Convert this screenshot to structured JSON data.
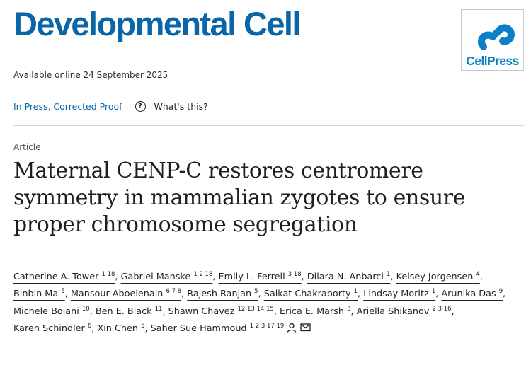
{
  "journal": {
    "title": "Developmental Cell",
    "logo_text": "CellPress",
    "brand_color": "#0b66a8",
    "logo_color": "#0b80c8"
  },
  "availability": "Available online 24 September 2025",
  "status": {
    "label": "In Press, Corrected Proof",
    "help_icon": "?",
    "help_link": "What's this?"
  },
  "article": {
    "type": "Article",
    "title": "Maternal CENP-C restores centromere symmetry in mammalian zygotes to ensure proper chromosome segregation"
  },
  "authors": [
    {
      "name": "Catherine A. Tower",
      "sup": "1 18"
    },
    {
      "name": "Gabriel Manske",
      "sup": "1 2 18"
    },
    {
      "name": "Emily L. Ferrell",
      "sup": "3 18"
    },
    {
      "name": "Dilara N. Anbarci",
      "sup": "1"
    },
    {
      "name": "Kelsey Jorgensen",
      "sup": "4"
    },
    {
      "name": "Binbin Ma",
      "sup": "5"
    },
    {
      "name": "Mansour Aboelenain",
      "sup": "6 7 8"
    },
    {
      "name": "Rajesh Ranjan",
      "sup": "5"
    },
    {
      "name": "Saikat Chakraborty",
      "sup": "1"
    },
    {
      "name": "Lindsay Moritz",
      "sup": "1"
    },
    {
      "name": "Arunika Das",
      "sup": "9"
    },
    {
      "name": "Michele Boiani",
      "sup": "10"
    },
    {
      "name": "Ben E. Black",
      "sup": "11"
    },
    {
      "name": "Shawn Chavez",
      "sup": "12 13 14 15"
    },
    {
      "name": "Erica E. Marsh",
      "sup": "3"
    },
    {
      "name": "Ariella Shikanov",
      "sup": "2 3 16"
    },
    {
      "name": "Karen Schindler",
      "sup": "6"
    },
    {
      "name": "Xin Chen",
      "sup": "5"
    },
    {
      "name": "Saher Sue Hammoud",
      "sup": "1 2 3 17 19",
      "icons": [
        "person-icon",
        "envelope-icon"
      ]
    }
  ]
}
